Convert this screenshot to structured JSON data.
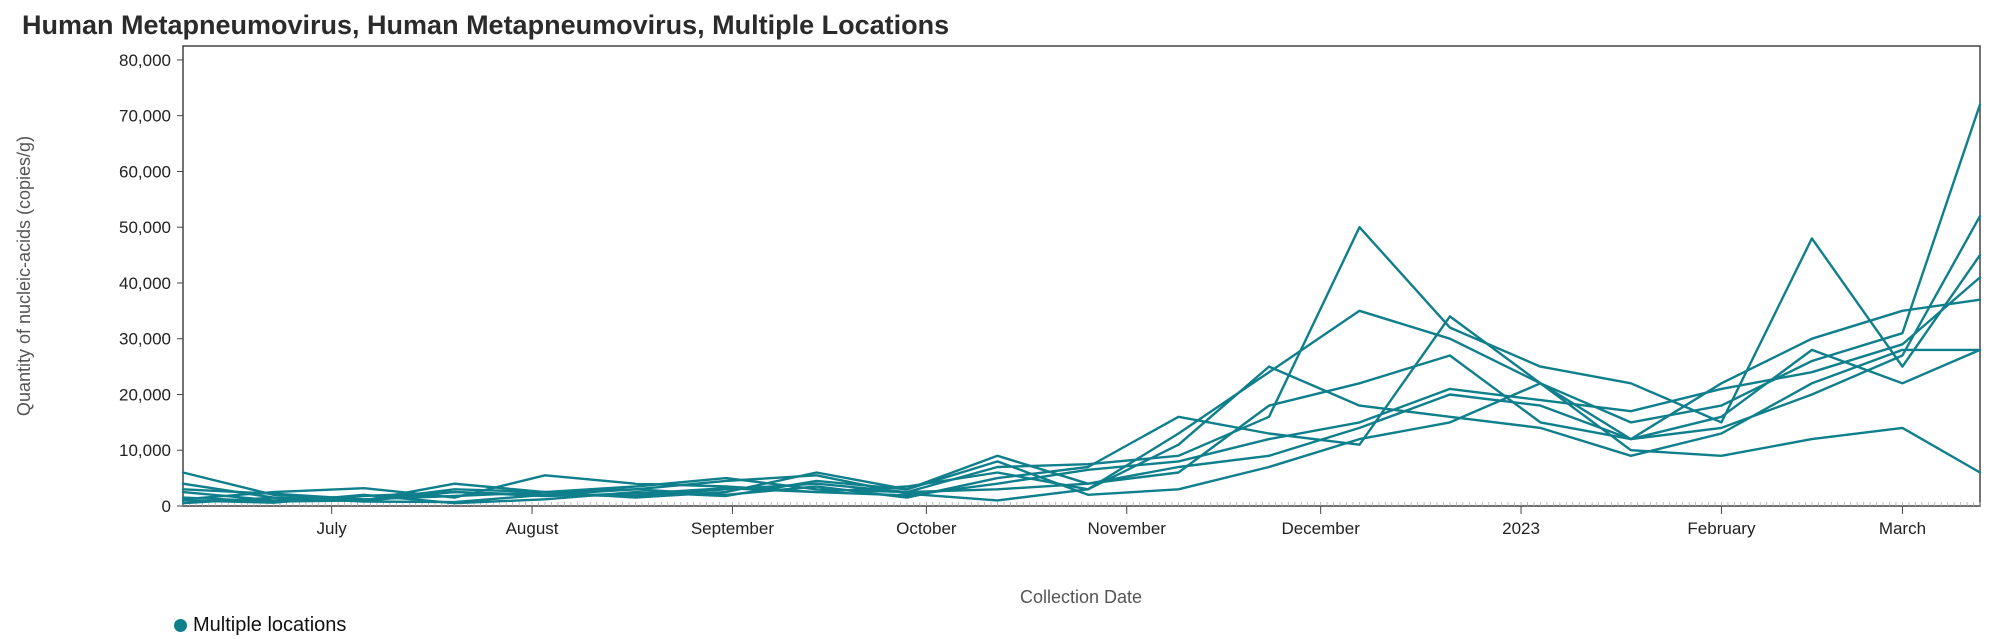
{
  "chart_data": {
    "type": "line",
    "title": "Human Metapneumovirus, Human Metapneumovirus, Multiple Locations",
    "xlabel": "Collection Date",
    "ylabel": "Quantity of nucleic-acids (copies/g)",
    "ylim": [
      0,
      82500
    ],
    "yticks": [
      "0",
      "10,000",
      "20,000",
      "30,000",
      "40,000",
      "50,000",
      "60,000",
      "70,000",
      "80,000"
    ],
    "ytick_values": [
      0,
      10000,
      20000,
      30000,
      40000,
      50000,
      60000,
      70000,
      80000
    ],
    "xlim": [
      "2022-06-08",
      "2023-03-13"
    ],
    "xticks": [
      {
        "label": "July",
        "date": "2022-07-01"
      },
      {
        "label": "August",
        "date": "2022-08-01"
      },
      {
        "label": "September",
        "date": "2022-09-01"
      },
      {
        "label": "October",
        "date": "2022-10-01"
      },
      {
        "label": "November",
        "date": "2022-11-01"
      },
      {
        "label": "December",
        "date": "2022-12-01"
      },
      {
        "label": "2023",
        "date": "2023-01-01"
      },
      {
        "label": "February",
        "date": "2023-02-01"
      },
      {
        "label": "March",
        "date": "2023-03-01"
      }
    ],
    "grid": false,
    "legend_position": "bottom-left",
    "legend": [
      {
        "label": "Multiple locations",
        "color": "#0f7f8c"
      }
    ],
    "line_color": "#0f7f8c",
    "x": [
      "2022-06-08",
      "2022-06-22",
      "2022-07-06",
      "2022-07-20",
      "2022-08-03",
      "2022-08-17",
      "2022-08-31",
      "2022-09-14",
      "2022-09-28",
      "2022-10-12",
      "2022-10-26",
      "2022-11-09",
      "2022-11-23",
      "2022-12-07",
      "2022-12-21",
      "2023-01-04",
      "2023-01-18",
      "2023-02-01",
      "2023-02-15",
      "2023-03-01",
      "2023-03-13"
    ],
    "series": [
      {
        "values": [
          4000,
          1500,
          900,
          2500,
          1800,
          2200,
          3200,
          2500,
          1900,
          4000,
          6500,
          8000,
          12000,
          15000,
          21000,
          19000,
          17000,
          21000,
          24000,
          29000,
          41000
        ]
      },
      {
        "values": [
          3000,
          2200,
          1200,
          1800,
          2500,
          3000,
          4500,
          5500,
          2200,
          1000,
          3000,
          13000,
          24000,
          35000,
          30000,
          22000,
          12000,
          16000,
          28000,
          22000,
          28000
        ]
      },
      {
        "values": [
          1500,
          800,
          1000,
          3000,
          2500,
          3500,
          5000,
          3000,
          2500,
          7000,
          7500,
          9000,
          16000,
          50000,
          32000,
          25000,
          22000,
          15000,
          48000,
          25000,
          45000
        ]
      },
      {
        "values": [
          2500,
          1000,
          1800,
          2500,
          2000,
          1800,
          3000,
          4000,
          2500,
          3000,
          4000,
          6000,
          18000,
          22000,
          27000,
          15000,
          12000,
          22000,
          30000,
          35000,
          37000
        ]
      },
      {
        "values": [
          1000,
          600,
          2000,
          500,
          1200,
          2500,
          1800,
          4500,
          3000,
          9000,
          4000,
          7000,
          9000,
          14000,
          20000,
          18000,
          12000,
          14000,
          20000,
          27000,
          52000
        ]
      },
      {
        "values": [
          500,
          1500,
          800,
          700,
          2000,
          3000,
          2000,
          3500,
          1500,
          5000,
          7000,
          16000,
          13000,
          11000,
          34000,
          22000,
          15000,
          18000,
          26000,
          31000,
          72000
        ]
      },
      {
        "values": [
          1200,
          2500,
          3200,
          1500,
          5500,
          4000,
          3500,
          2500,
          3500,
          6000,
          3000,
          11000,
          25000,
          18000,
          16000,
          14000,
          9000,
          13000,
          22000,
          28000,
          28000
        ]
      },
      {
        "values": [
          6000,
          2000,
          1000,
          4000,
          2500,
          1500,
          2500,
          6000,
          3000,
          8000,
          2000,
          3000,
          7000,
          12000,
          15000,
          22000,
          10000,
          9000,
          12000,
          14000,
          6000
        ]
      }
    ]
  }
}
